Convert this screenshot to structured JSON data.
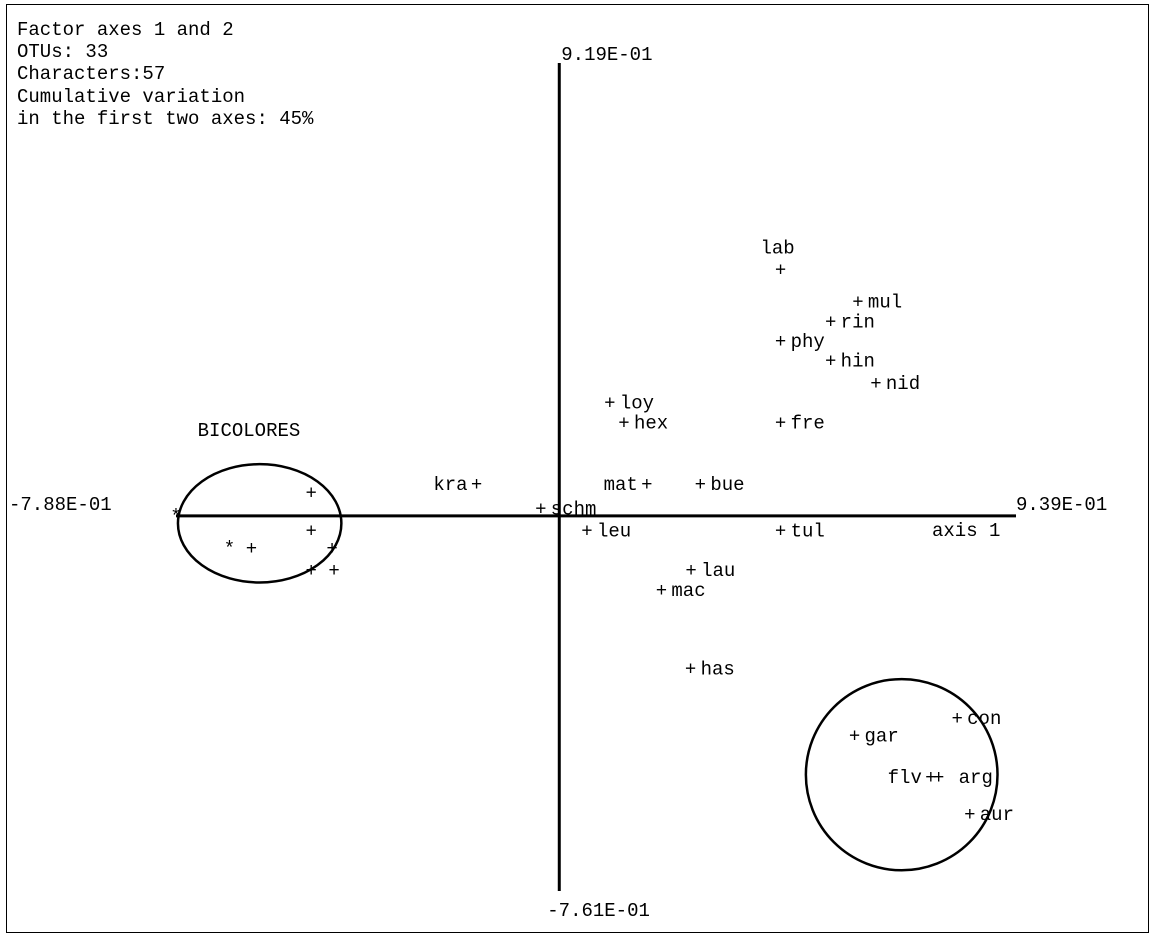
{
  "chart_data": {
    "type": "scatter",
    "info": [
      "Factor axes 1 and 2",
      "OTUs: 33",
      "Characters:57",
      "Cumulative variation",
      "in the first two axes: 45%"
    ],
    "x_axis": {
      "min_label": "-7.88E-01",
      "max_label": "9.39E-01",
      "label": "axis 1"
    },
    "y_axis": {
      "max_label": "9.19E-01",
      "min_label": "-7.61E-01"
    },
    "xlim": [
      -0.788,
      0.939
    ],
    "ylim": [
      -0.761,
      0.919
    ],
    "points": [
      {
        "label": "lab",
        "x": 0.455,
        "y": 0.5
      },
      {
        "label": "mul",
        "x": 0.614,
        "y": 0.435
      },
      {
        "label": "rin",
        "x": 0.558,
        "y": 0.395
      },
      {
        "label": "phy",
        "x": 0.455,
        "y": 0.355
      },
      {
        "label": "hin",
        "x": 0.558,
        "y": 0.315
      },
      {
        "label": "nid",
        "x": 0.651,
        "y": 0.27
      },
      {
        "label": "loy",
        "x": 0.104,
        "y": 0.23
      },
      {
        "label": "hex",
        "x": 0.133,
        "y": 0.19
      },
      {
        "label": "fre",
        "x": 0.455,
        "y": 0.19
      },
      {
        "label": "kra",
        "x": -0.17,
        "y": 0.065
      },
      {
        "label": "mat",
        "x": 0.18,
        "y": 0.065
      },
      {
        "label": "bue",
        "x": 0.29,
        "y": 0.065
      },
      {
        "label": "schm",
        "x": -0.038,
        "y": 0.015
      },
      {
        "label": "leu",
        "x": 0.057,
        "y": -0.03
      },
      {
        "label": "tul",
        "x": 0.455,
        "y": -0.03
      },
      {
        "label": "lau",
        "x": 0.271,
        "y": -0.11
      },
      {
        "label": "mac",
        "x": 0.21,
        "y": -0.15
      },
      {
        "label": "has",
        "x": 0.27,
        "y": -0.31
      },
      {
        "label": "con",
        "x": 0.818,
        "y": -0.41
      },
      {
        "label": "gar",
        "x": 0.607,
        "y": -0.445
      },
      {
        "label": "flv",
        "x": 0.764,
        "y": -0.53
      },
      {
        "label": "arg",
        "x": 0.78,
        "y": -0.53
      },
      {
        "label": "aur",
        "x": 0.844,
        "y": -0.605
      },
      {
        "label": "",
        "x": -0.788,
        "y": 0.0
      },
      {
        "label": "",
        "x": -0.678,
        "y": -0.065
      },
      {
        "label": "",
        "x": -0.51,
        "y": 0.048
      },
      {
        "label": "",
        "x": -0.51,
        "y": -0.03
      },
      {
        "label": "",
        "x": -0.633,
        "y": -0.065
      },
      {
        "label": "",
        "x": -0.467,
        "y": -0.065
      },
      {
        "label": "",
        "x": -0.51,
        "y": -0.11
      },
      {
        "label": "",
        "x": -0.463,
        "y": -0.11
      }
    ],
    "groups": [
      {
        "label": "BICOLORES",
        "cx": -0.616,
        "cy": -0.015,
        "rx": 0.168,
        "ry": 0.12
      },
      {
        "label": "",
        "cx": 0.704,
        "cy": -0.525,
        "rx": 0.197,
        "ry": 0.194
      }
    ]
  }
}
